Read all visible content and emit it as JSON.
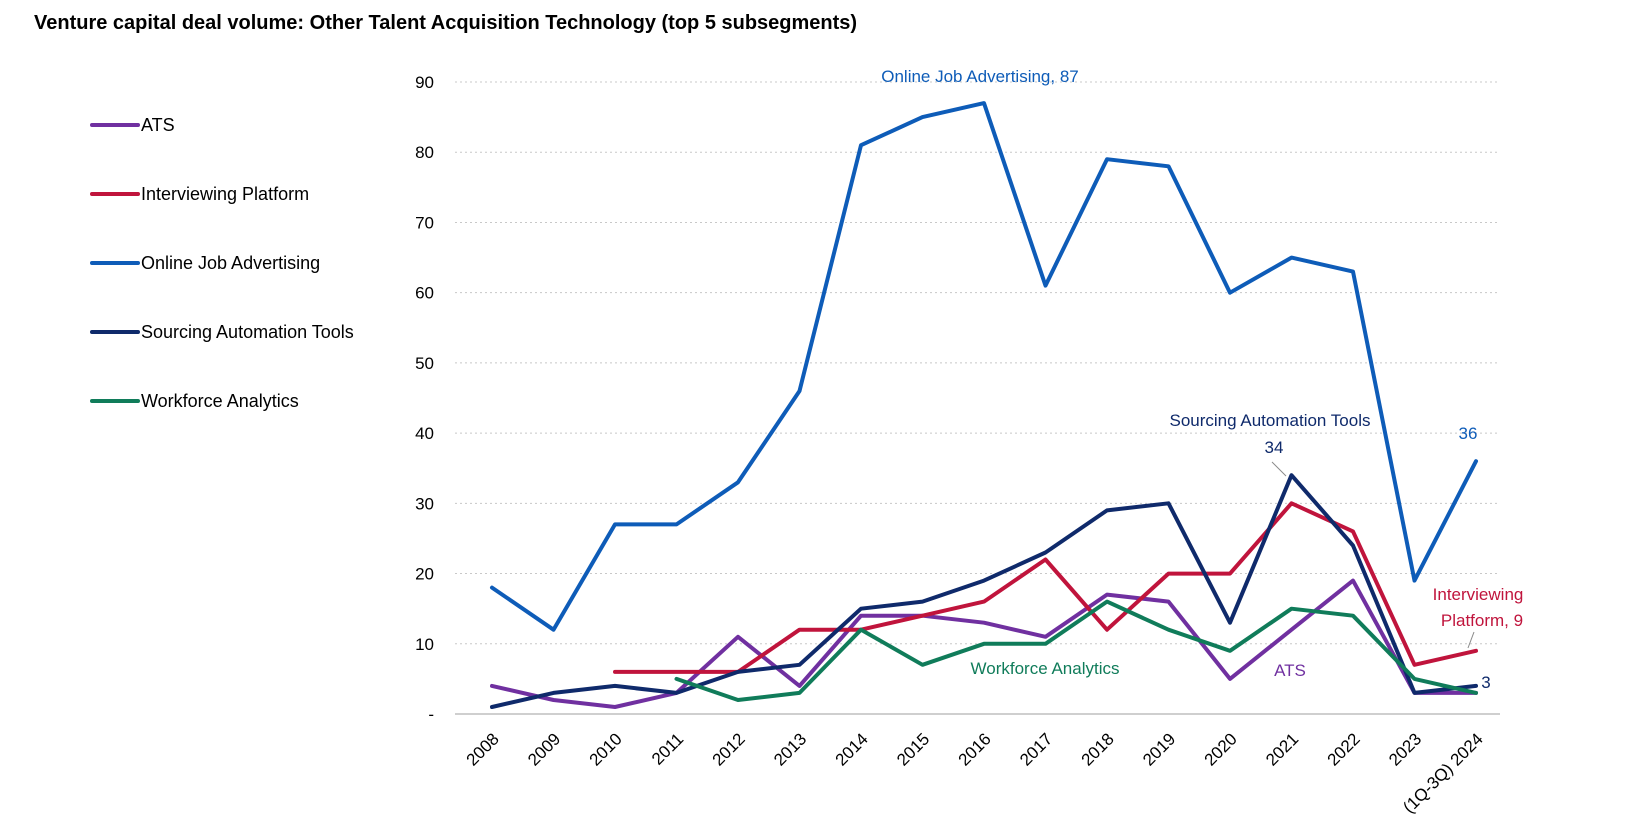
{
  "chart_data": {
    "type": "line",
    "title": "Venture capital deal volume: Other Talent Acquisition Technology (top 5 subsegments)",
    "xlabel": "",
    "ylabel": "",
    "categories": [
      "2008",
      "2009",
      "2010",
      "2011",
      "2012",
      "2013",
      "2014",
      "2015",
      "2016",
      "2017",
      "2018",
      "2019",
      "2020",
      "2021",
      "2022",
      "2023",
      "(1Q-3Q) 2024"
    ],
    "ylim": [
      0,
      90
    ],
    "yticks": [
      0,
      10,
      20,
      30,
      40,
      50,
      60,
      70,
      80,
      90
    ],
    "ytick_labels": [
      "-",
      "10",
      "20",
      "30",
      "40",
      "50",
      "60",
      "70",
      "80",
      "90"
    ],
    "grid": "horizontal dotted",
    "legend_position": "left",
    "series": [
      {
        "name": "ATS",
        "color": "#7030a0",
        "values": [
          4,
          2,
          1,
          3,
          11,
          4,
          14,
          14,
          13,
          11,
          17,
          16,
          5,
          12,
          19,
          3,
          3
        ]
      },
      {
        "name": "Interviewing Platform",
        "color": "#c0143c",
        "values": [
          null,
          null,
          6,
          6,
          6,
          12,
          12,
          14,
          16,
          22,
          12,
          20,
          20,
          30,
          26,
          7,
          9
        ]
      },
      {
        "name": "Online Job Advertising",
        "color": "#0e5cb8",
        "values": [
          18,
          12,
          27,
          27,
          33,
          46,
          81,
          85,
          87,
          61,
          79,
          78,
          60,
          65,
          63,
          19,
          36
        ]
      },
      {
        "name": "Sourcing Automation Tools",
        "color": "#0f2a6b",
        "values": [
          1,
          3,
          4,
          3,
          6,
          7,
          15,
          16,
          19,
          23,
          29,
          30,
          13,
          34,
          24,
          3,
          4
        ]
      },
      {
        "name": "Workforce Analytics",
        "color": "#107c5a",
        "values": [
          null,
          null,
          null,
          5,
          2,
          3,
          12,
          7,
          10,
          10,
          16,
          12,
          9,
          15,
          14,
          5,
          3
        ]
      }
    ],
    "annotations": [
      {
        "text": "Online Job Advertising,  87",
        "series": "Online Job Advertising",
        "color": "#0e5cb8"
      },
      {
        "text": "Sourcing Automation Tools",
        "series": "Sourcing Automation Tools",
        "color": "#0f2a6b"
      },
      {
        "text": "34",
        "series": "Sourcing Automation Tools",
        "color": "#0f2a6b"
      },
      {
        "text": "36",
        "series": "Online Job Advertising",
        "color": "#0e5cb8"
      },
      {
        "text": "Interviewing",
        "series": "Interviewing Platform",
        "color": "#c0143c"
      },
      {
        "text": "Platform, 9",
        "series": "Interviewing Platform",
        "color": "#c0143c"
      },
      {
        "text": "3",
        "series": "Sourcing Automation Tools",
        "color": "#0f2a6b"
      },
      {
        "text": "Workforce Analytics",
        "series": "Workforce Analytics",
        "color": "#107c5a"
      },
      {
        "text": "ATS",
        "series": "ATS",
        "color": "#7030a0"
      }
    ]
  }
}
